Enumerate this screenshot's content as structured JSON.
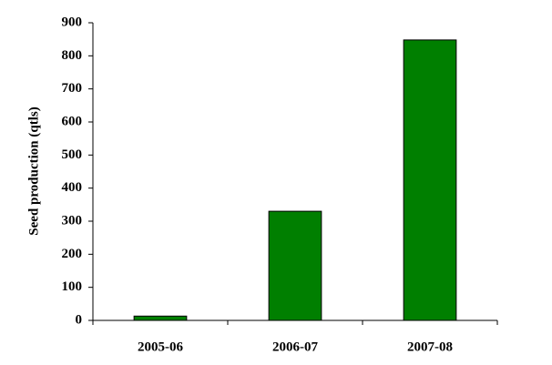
{
  "chart_data": {
    "type": "bar",
    "y_label": "Seed production (qtls)",
    "categories": [
      "2005-06",
      "2006-07",
      "2007-08"
    ],
    "values": [
      13,
      330,
      848
    ],
    "color": "#007f00",
    "ylim": [
      0,
      900
    ],
    "yticks": [
      0,
      100,
      200,
      300,
      400,
      500,
      600,
      700,
      800,
      900
    ]
  }
}
